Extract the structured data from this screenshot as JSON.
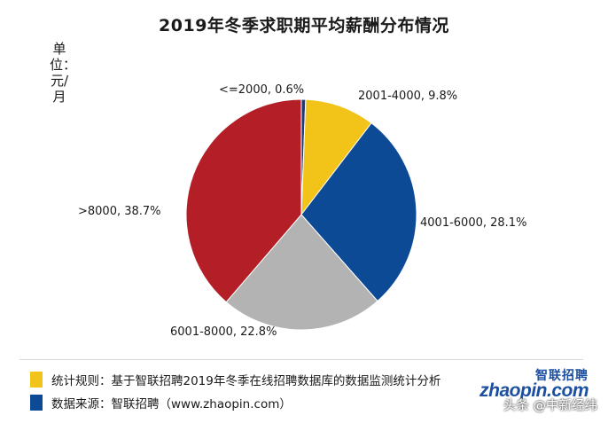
{
  "title": "2019年冬季求职期平均薪酬分布情况",
  "unit_label": "单位：元/月",
  "chart_data": {
    "type": "pie",
    "title": "2019年冬季求职期平均薪酬分布情况",
    "unit": "单位：元/月",
    "slices": [
      {
        "label": "<=2000, 0.6%",
        "category": "<=2000",
        "value": 0.6,
        "color": "#1f3a7a"
      },
      {
        "label": "2001-4000, 9.8%",
        "category": "2001-4000",
        "value": 9.8,
        "color": "#f2c318"
      },
      {
        "label": "4001-6000, 28.1%",
        "category": "4001-6000",
        "value": 28.1,
        "color": "#0d4a96"
      },
      {
        "label": "6001-8000, 22.8%",
        "category": "6001-8000",
        "value": 22.8,
        "color": "#b3b3b3"
      },
      {
        "label": ">8000, 38.7%",
        "category": ">8000",
        "value": 38.7,
        "color": "#b41f27"
      }
    ]
  },
  "footnotes": [
    {
      "text": "统计规则：基于智联招聘2019年冬季在线招聘数据库的数据监测统计分析",
      "color": "#f2c318"
    },
    {
      "text": "数据来源：智联招聘（www.zhaopin.com）",
      "color": "#0d4a96"
    }
  ],
  "logo": {
    "top_text": "智联招聘",
    "main_text": "zhaopin.com"
  },
  "watermark": "头条 @中新经纬"
}
